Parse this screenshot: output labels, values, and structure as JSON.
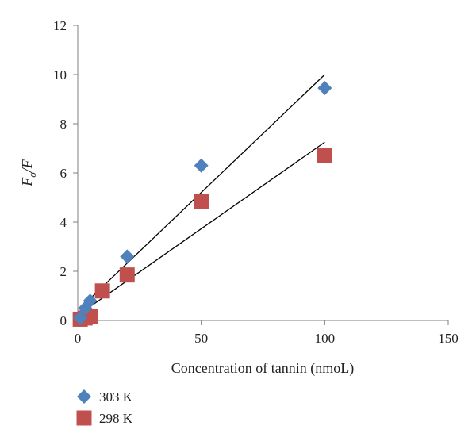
{
  "chart_data": {
    "type": "scatter",
    "title": "",
    "xlabel": "Concentration of tannin (nmoL)",
    "ylabel_main": "F",
    "ylabel_sub": "o",
    "ylabel_tail": "/F",
    "xlim": [
      0,
      150
    ],
    "ylim": [
      0,
      12
    ],
    "x_ticks": [
      0,
      50,
      100,
      150
    ],
    "y_ticks": [
      0,
      2,
      4,
      6,
      8,
      10,
      12
    ],
    "legend_position": "bottom-left",
    "grid": false,
    "series": [
      {
        "name": "303 K",
        "marker": "diamond",
        "color": "#4F81BD",
        "x": [
          1,
          3,
          5,
          20,
          50,
          100
        ],
        "y": [
          0.1,
          0.5,
          0.8,
          2.6,
          6.3,
          9.45
        ],
        "trendline": {
          "x": [
            2,
            100
          ],
          "y": [
            0.6,
            10.0
          ]
        }
      },
      {
        "name": "298 K",
        "marker": "square",
        "color": "#C0504D",
        "x": [
          1,
          3,
          5,
          10,
          20,
          50,
          100
        ],
        "y": [
          0.05,
          0.1,
          0.15,
          1.2,
          1.85,
          4.85,
          6.7
        ],
        "trendline": {
          "x": [
            2,
            100
          ],
          "y": [
            0.35,
            7.25
          ]
        }
      }
    ]
  }
}
